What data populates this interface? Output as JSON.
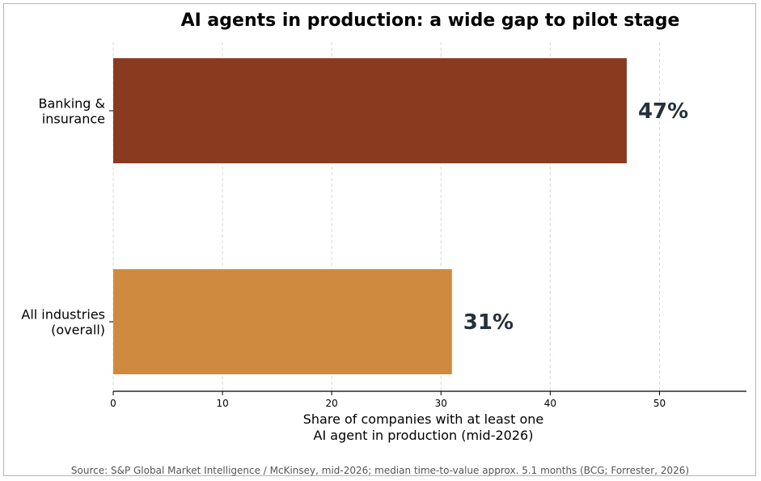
{
  "chart_data": {
    "type": "bar",
    "orientation": "horizontal",
    "title": "AI agents in production: a wide gap to pilot stage",
    "xlabel_lines": [
      "Share of companies with at least one",
      "AI agent in production (mid-2026)"
    ],
    "ylabel": "",
    "categories": [
      {
        "lines": [
          "Banking &",
          "insurance"
        ]
      },
      {
        "lines": [
          "All industries",
          "(overall)"
        ]
      }
    ],
    "values": [
      47,
      31
    ],
    "data_labels": [
      "47%",
      "31%"
    ],
    "colors": [
      "#8a3a1f",
      "#cf8a3f"
    ],
    "xlim": [
      0,
      58
    ],
    "xticks": [
      0,
      10,
      20,
      30,
      40,
      50
    ],
    "grid": "x-dashed",
    "legend": "none",
    "source": "Source: S&P Global Market Intelligence / McKinsey, mid-2026; median time-to-value approx. 5.1 months (BCG; Forrester, 2026)"
  }
}
